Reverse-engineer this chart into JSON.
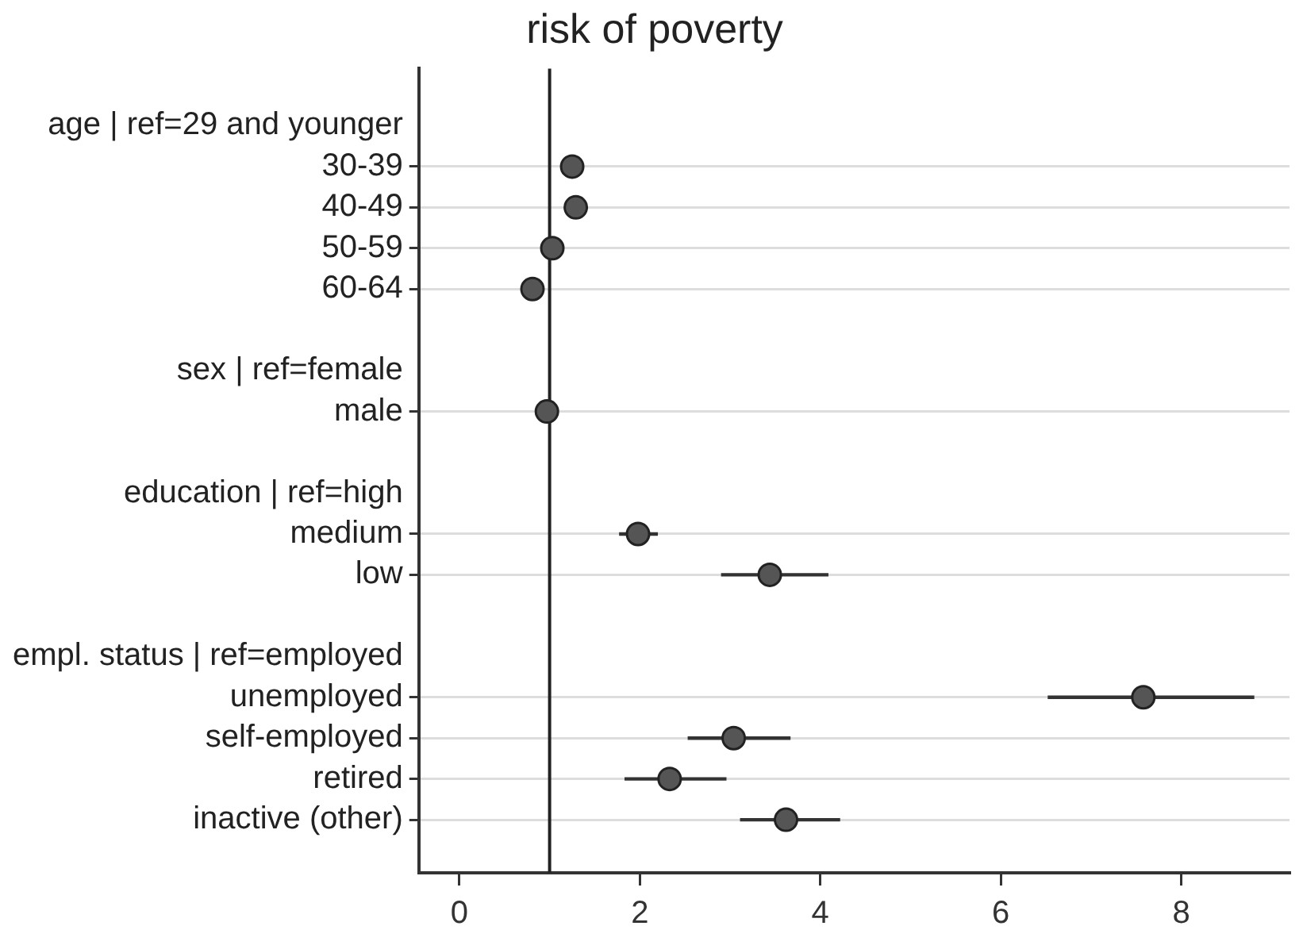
{
  "chart_data": {
    "type": "scatter",
    "orientation": "horizontal",
    "title": "risk of poverty",
    "categories": [
      "age | ref=29 and younger",
      "30-39",
      "40-49",
      "50-59",
      "60-64",
      null,
      "sex | ref=female",
      "male",
      null,
      "education | ref=high",
      "medium",
      "low",
      null,
      "empl. status | ref=employed",
      "unemployed",
      "self-employed",
      "retired",
      "inactive (other)"
    ],
    "values": [
      null,
      1.25,
      1.29,
      1.03,
      0.81,
      null,
      null,
      0.97,
      null,
      null,
      1.98,
      3.44,
      null,
      null,
      7.58,
      3.04,
      2.33,
      3.62
    ],
    "errors": [
      null,
      null,
      null,
      null,
      null,
      null,
      null,
      null,
      null,
      null,
      [
        1.77,
        2.2
      ],
      [
        2.9,
        4.09
      ],
      null,
      null,
      [
        6.52,
        8.81
      ],
      [
        2.53,
        3.67
      ],
      [
        1.83,
        2.96
      ],
      [
        3.11,
        4.22
      ]
    ],
    "color": "#555555",
    "marker": "circle",
    "xlim": [
      -0.45,
      9.2
    ],
    "xticks": [
      0,
      2,
      4,
      6,
      8
    ],
    "ref_lines": [
      {
        "axis": "x",
        "value": 1,
        "color": "#222222"
      }
    ],
    "grid": "y",
    "legend": false
  }
}
